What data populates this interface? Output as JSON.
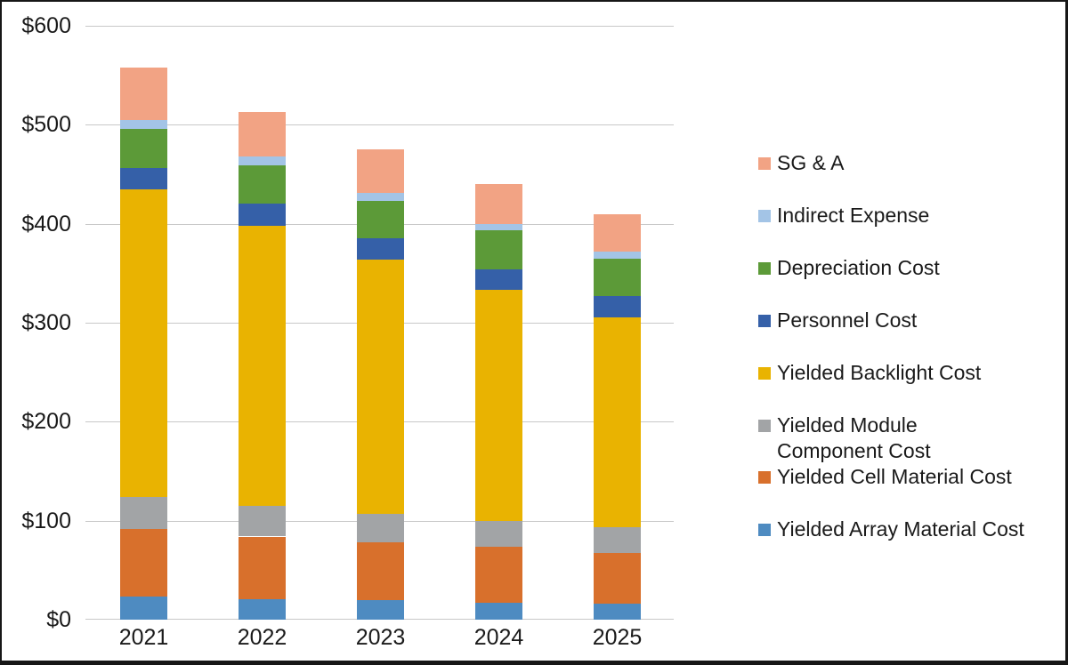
{
  "figure": {
    "background": "#FFFFFF",
    "border_color": "#161616",
    "gridline_color": "#C8C8C8",
    "text_color": "#1A1A1A"
  },
  "chart_data": {
    "type": "bar",
    "stacked": true,
    "categories": [
      "2021",
      "2022",
      "2023",
      "2024",
      "2025"
    ],
    "series": [
      {
        "name": "Yielded Array Material Cost",
        "color": "#4E8BC1",
        "values": [
          23,
          21,
          20,
          17,
          16
        ]
      },
      {
        "name": "Yielded Cell Material Cost",
        "color": "#D8702C",
        "values": [
          69,
          63,
          58,
          57,
          51
        ]
      },
      {
        "name": "Yielded Module Component Cost",
        "color": "#A2A4A6",
        "values": [
          32,
          31,
          29,
          26,
          26
        ]
      },
      {
        "name": "Yielded Backlight Cost",
        "color": "#E9B301",
        "values": [
          311,
          283,
          257,
          233,
          212
        ]
      },
      {
        "name": "Personnel Cost",
        "color": "#3560A8",
        "values": [
          21,
          22,
          21,
          21,
          22
        ]
      },
      {
        "name": "Depreciation Cost",
        "color": "#5C9A38",
        "values": [
          40,
          39,
          38,
          39,
          38
        ]
      },
      {
        "name": "Indirect Expense",
        "color": "#A3C4E6",
        "values": [
          9,
          9,
          8,
          7,
          7
        ]
      },
      {
        "name": "SG & A",
        "color": "#F2A384",
        "values": [
          53,
          45,
          44,
          40,
          38
        ]
      }
    ],
    "totals": [
      558,
      513,
      475,
      440,
      410
    ],
    "ylim": [
      0,
      600
    ],
    "yticks": [
      {
        "value": 0,
        "label": "$0"
      },
      {
        "value": 100,
        "label": "$100"
      },
      {
        "value": 200,
        "label": "$200"
      },
      {
        "value": 300,
        "label": "$300"
      },
      {
        "value": 400,
        "label": "$400"
      },
      {
        "value": 500,
        "label": "$500"
      },
      {
        "value": 600,
        "label": "$600"
      }
    ],
    "grid": true,
    "legend_position": "right",
    "legend_order": [
      "SG & A",
      "Indirect Expense",
      "Depreciation Cost",
      "Personnel Cost",
      "Yielded Backlight Cost",
      "Yielded Module Component Cost",
      "Yielded Cell Material Cost",
      "Yielded Array Material Cost"
    ]
  }
}
